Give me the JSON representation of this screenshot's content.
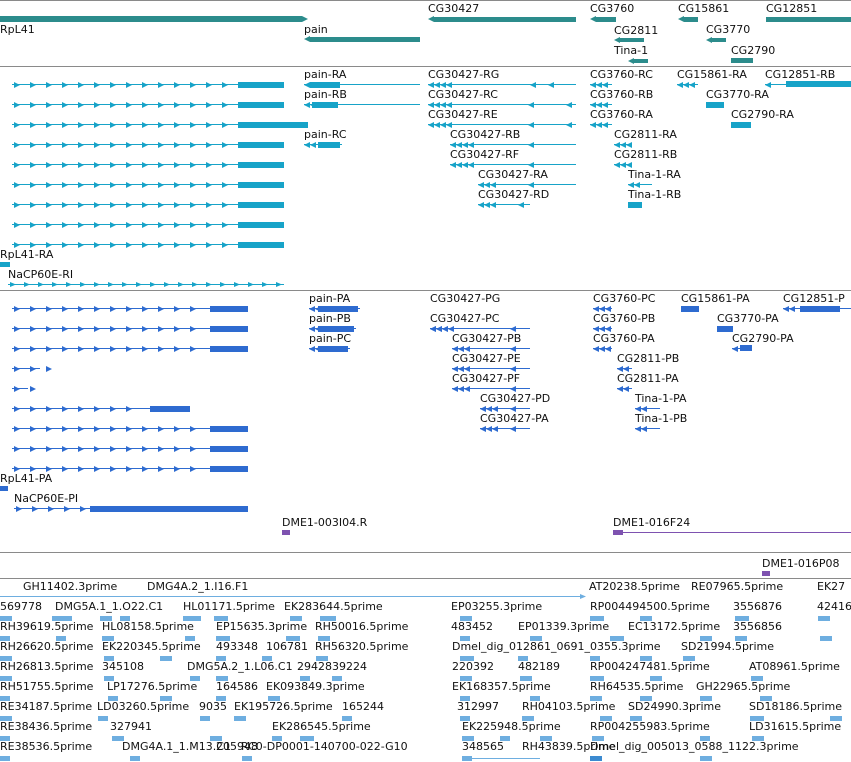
{
  "colors": {
    "gene": "#2c8c8c",
    "transcript": "#17a3c8",
    "protein": "#2e6bd0",
    "clone": "#7e52b0",
    "est": "#6eaee0",
    "est_dark": "#3b8ad0",
    "separator": "#8a8a8a",
    "text": "#111111"
  },
  "tracks": {
    "genes": {
      "labels": [
        "RpL41",
        "pain",
        "CG30427",
        "CG3760",
        "CG15861",
        "CG12851",
        "CG2811",
        "CG3770",
        "Tina-1",
        "CG2790"
      ]
    },
    "transcripts": {
      "labels": [
        "pain-RA",
        "pain-RB",
        "pain-RC",
        "CG30427-RG",
        "CG30427-RC",
        "CG30427-RE",
        "CG30427-RB",
        "CG30427-RF",
        "CG30427-RA",
        "CG30427-RD",
        "CG3760-RC",
        "CG3760-RB",
        "CG3760-RA",
        "CG15861-RA",
        "CG12851-RB",
        "CG3770-RA",
        "CG2790-RA",
        "CG2811-RA",
        "CG2811-RB",
        "Tina-1-RA",
        "Tina-1-RB",
        "RpL41-RA",
        "NaCP60E-RI"
      ]
    },
    "proteins": {
      "labels": [
        "pain-PA",
        "pain-PB",
        "pain-PC",
        "CG30427-PG",
        "CG30427-PC",
        "CG30427-PB",
        "CG30427-PE",
        "CG30427-PF",
        "CG30427-PD",
        "CG30427-PA",
        "CG3760-PC",
        "CG3760-PB",
        "CG3760-PA",
        "CG15861-PA",
        "CG12851-P",
        "CG3770-PA",
        "CG2790-PA",
        "CG2811-PB",
        "CG2811-PA",
        "Tina-1-PA",
        "Tina-1-PB",
        "RpL41-PA",
        "NaCP60E-PI"
      ]
    },
    "clones": {
      "labels": [
        "DME1-003I04.R",
        "DME1-016F24",
        "DME1-016P08"
      ]
    },
    "ests": {
      "labels": [
        "GH11402.3prime",
        "DMG4A.2_1.I16.F1",
        "AT20238.5prime",
        "RE07965.5prime",
        "EK27",
        "569778",
        "DMG5A.1_1.O22.C1",
        "HL01171.5prime",
        "EK283644.5prime",
        "EP03255.3prime",
        "RP004494500.5prime",
        "3556876",
        "42416",
        "RH39619.5prime",
        "HL08158.5prime",
        "EP15635.3prime",
        "RH50016.5prime",
        "483452",
        "EP01339.3prime",
        "EC13172.5prime",
        "3556856",
        "RH26620.5prime",
        "EK220345.5prime",
        "493348",
        "106781",
        "RH56320.5prime",
        "Dmel_dig_012861_0691_0355.3prime",
        "SD21994.5prime",
        "RH26813.5prime",
        "345108",
        "DMG5A.2_1.L06.C1",
        "29428",
        "39224",
        "220392",
        "482189",
        "RP004247481.5prime",
        "AT08961.5prime",
        "RH51755.5prime",
        "LP17276.5prime",
        "164586",
        "EK093849.3prime",
        "EK168357.5prime",
        "RH64535.5prime",
        "GH22965.5prime",
        "RE34187.5prime",
        "LD03260.5prime",
        "9035",
        "EK195726.5prime",
        "165244",
        "312997",
        "RH04103.5prime",
        "SD24990.3prime",
        "SD18186.5prime",
        "RE38436.5prime",
        "327941",
        "EK286545.5prime",
        "205948",
        "EK225948.5prime",
        "RP004255983.5prime",
        "LD31615.5prime",
        "RE38536.5prime",
        "DMG4A.1_1.M13.C1",
        "RC0-DP0001-140700-022-G10",
        "348565",
        "RH43839.5prime",
        "Dmel_dig_005013_0588_1122.3prime"
      ]
    }
  }
}
